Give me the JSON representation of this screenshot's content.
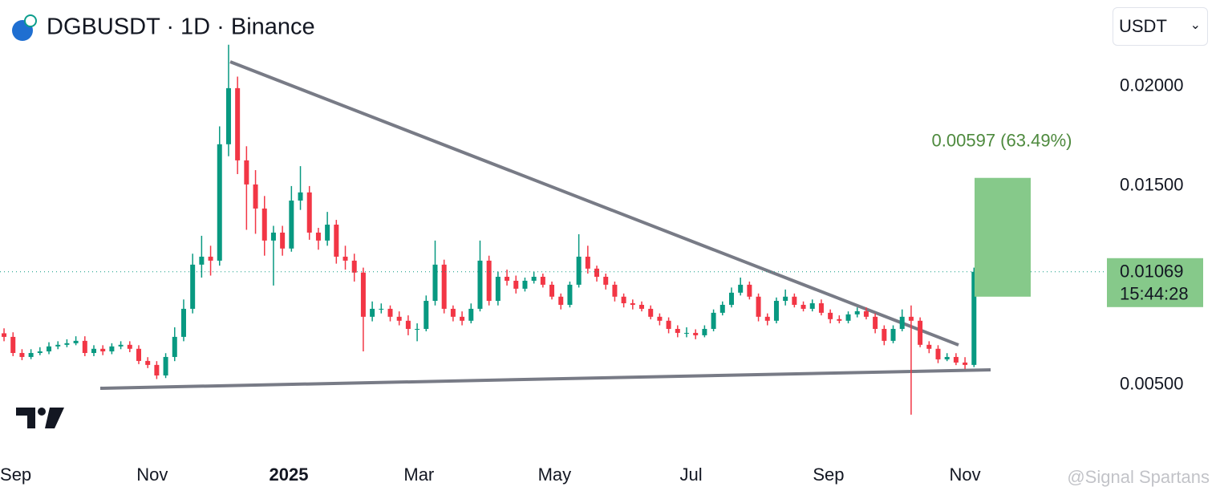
{
  "chart_data": {
    "type": "candlestick",
    "title": "DGBUSDT · 1D · Binance",
    "currency": "USDT",
    "up_color": "#089981",
    "down_color": "#f23645",
    "open": [
      0.0076,
      0.00742,
      0.00661,
      0.00641,
      0.00661,
      0.00669,
      0.00694,
      0.00702,
      0.0071,
      0.00722,
      0.00661,
      0.00682,
      0.00669,
      0.00694,
      0.00702,
      0.00682,
      0.00621,
      0.00601,
      0.00548,
      0.00641,
      0.00742,
      0.00883,
      0.01105,
      0.01145,
      0.01125,
      0.0171,
      0.01992,
      0.01629,
      0.01508,
      0.01387,
      0.01226,
      0.01266,
      0.01186,
      0.01427,
      0.01468,
      0.01266,
      0.01226,
      0.01306,
      0.01145,
      0.01125,
      0.01065,
      0.00843,
      0.00883,
      0.00883,
      0.00843,
      0.00823,
      0.00782,
      0.00782,
      0.00923,
      0.01105,
      0.00883,
      0.00843,
      0.00823,
      0.00883,
      0.01125,
      0.00923,
      0.01044,
      0.01024,
      0.00984,
      0.01024,
      0.01044,
      0.01004,
      0.00944,
      0.00903,
      0.01004,
      0.01145,
      0.01085,
      0.01044,
      0.01004,
      0.00944,
      0.00911,
      0.00903,
      0.00883,
      0.00843,
      0.00823,
      0.00782,
      0.00762,
      0.00762,
      0.0075,
      0.00782,
      0.00863,
      0.00903,
      0.00964,
      0.01004,
      0.00944,
      0.00843,
      0.00823,
      0.00923,
      0.00944,
      0.00903,
      0.00883,
      0.00911,
      0.00863,
      0.00831,
      0.00823,
      0.00855,
      0.00871,
      0.00843,
      0.00782,
      0.00722,
      0.00782,
      0.00843,
      0.00823,
      0.00702,
      0.00682,
      0.00629,
      0.00641,
      0.00613,
      0.00601
    ],
    "high": [
      0.00785,
      0.00765,
      0.0068,
      0.0068,
      0.0069,
      0.00715,
      0.0072,
      0.0073,
      0.00745,
      0.00745,
      0.007,
      0.007,
      0.0071,
      0.0072,
      0.0072,
      0.007,
      0.0064,
      0.0062,
      0.0066,
      0.0079,
      0.0093,
      0.0116,
      0.0125,
      0.012,
      0.018,
      0.0221,
      0.0205,
      0.017,
      0.0158,
      0.0145,
      0.013,
      0.013,
      0.015,
      0.016,
      0.015,
      0.0129,
      0.0137,
      0.0133,
      0.012,
      0.0116,
      0.0109,
      0.0092,
      0.0091,
      0.009,
      0.0087,
      0.0085,
      0.0081,
      0.0095,
      0.01226,
      0.0113,
      0.009,
      0.0087,
      0.0091,
      0.01226,
      0.0115,
      0.0107,
      0.0108,
      0.0105,
      0.0104,
      0.0107,
      0.0106,
      0.0102,
      0.0096,
      0.0102,
      0.01258,
      0.012,
      0.011,
      0.0106,
      0.0102,
      0.0096,
      0.0093,
      0.0092,
      0.009,
      0.0086,
      0.0084,
      0.008,
      0.0079,
      0.0078,
      0.008,
      0.0088,
      0.0092,
      0.0099,
      0.0104,
      0.0102,
      0.0096,
      0.0086,
      0.0094,
      0.0098,
      0.0096,
      0.0092,
      0.0093,
      0.0093,
      0.0088,
      0.0085,
      0.0087,
      0.0089,
      0.0089,
      0.0086,
      0.008,
      0.008,
      0.0088,
      0.009,
      0.0084,
      0.0072,
      0.007,
      0.0066,
      0.0066,
      0.0064,
      0.0109
    ],
    "low": [
      0.0072,
      0.00645,
      0.00625,
      0.0063,
      0.0065,
      0.00655,
      0.0068,
      0.0069,
      0.007,
      0.00645,
      0.00645,
      0.0065,
      0.00655,
      0.0068,
      0.00665,
      0.00605,
      0.00585,
      0.0053,
      0.00535,
      0.0062,
      0.0072,
      0.0086,
      0.0104,
      0.0105,
      0.011,
      0.0165,
      0.0156,
      0.0128,
      0.0126,
      0.0115,
      0.01,
      0.0115,
      0.0117,
      0.0138,
      0.0123,
      0.0118,
      0.012,
      0.0111,
      0.0108,
      0.0102,
      0.00669,
      0.0082,
      0.0086,
      0.0082,
      0.008,
      0.0075,
      0.0072,
      0.0077,
      0.009,
      0.0086,
      0.0082,
      0.008,
      0.0081,
      0.0087,
      0.009,
      0.009,
      0.01,
      0.0096,
      0.0097,
      0.0101,
      0.0099,
      0.0093,
      0.0088,
      0.0089,
      0.0099,
      0.0106,
      0.0102,
      0.0098,
      0.0092,
      0.0089,
      0.0088,
      0.0087,
      0.0083,
      0.008,
      0.0076,
      0.0074,
      0.0074,
      0.0073,
      0.0074,
      0.0077,
      0.0085,
      0.0089,
      0.0095,
      0.0093,
      0.0082,
      0.008,
      0.0081,
      0.009,
      0.0089,
      0.0087,
      0.0087,
      0.0085,
      0.0081,
      0.0081,
      0.0081,
      0.0084,
      0.0083,
      0.0076,
      0.007,
      0.0071,
      0.0077,
      0.00351,
      0.0069,
      0.0066,
      0.0061,
      0.0062,
      0.006,
      0.0058,
      0.0059
    ],
    "close": [
      0.00742,
      0.00661,
      0.00641,
      0.00661,
      0.00669,
      0.00694,
      0.00702,
      0.0071,
      0.00722,
      0.00661,
      0.00682,
      0.00669,
      0.00694,
      0.00702,
      0.00682,
      0.00621,
      0.00601,
      0.00548,
      0.00641,
      0.00742,
      0.00883,
      0.01105,
      0.01145,
      0.01125,
      0.0171,
      0.01992,
      0.01629,
      0.01508,
      0.01387,
      0.01226,
      0.01266,
      0.01186,
      0.01427,
      0.01468,
      0.01266,
      0.01226,
      0.01306,
      0.01145,
      0.01125,
      0.01065,
      0.00843,
      0.00883,
      0.00883,
      0.00843,
      0.00823,
      0.00782,
      0.00782,
      0.00923,
      0.01105,
      0.00883,
      0.00843,
      0.00823,
      0.00883,
      0.01125,
      0.00923,
      0.01044,
      0.01024,
      0.00984,
      0.01024,
      0.01044,
      0.01004,
      0.00944,
      0.00903,
      0.01004,
      0.01145,
      0.01085,
      0.01044,
      0.01004,
      0.00944,
      0.00911,
      0.00903,
      0.00883,
      0.00843,
      0.00823,
      0.00782,
      0.00762,
      0.00762,
      0.0075,
      0.00782,
      0.00863,
      0.00903,
      0.00964,
      0.01004,
      0.00944,
      0.00843,
      0.00823,
      0.00923,
      0.00944,
      0.00903,
      0.00883,
      0.00911,
      0.00863,
      0.00831,
      0.00823,
      0.00855,
      0.00871,
      0.00843,
      0.00782,
      0.00722,
      0.00782,
      0.00843,
      0.00823,
      0.00702,
      0.00682,
      0.00629,
      0.00641,
      0.00613,
      0.00601,
      0.01069
    ],
    "xlim": [
      -0.45,
      122.8
    ],
    "ylim": [
      0.00157,
      0.02435
    ],
    "xticks": [
      {
        "value": 1.3,
        "label": "Sep"
      },
      {
        "value": 16.5,
        "label": "Nov"
      },
      {
        "value": 31.7,
        "label": "2025"
      },
      {
        "value": 46.2,
        "label": "Mar"
      },
      {
        "value": 61.3,
        "label": "May"
      },
      {
        "value": 76.5,
        "label": "Jul"
      },
      {
        "value": 91.8,
        "label": "Sep"
      },
      {
        "value": 107,
        "label": "Nov"
      }
    ],
    "yticks": [
      {
        "value": 0.005,
        "label": "0.00500"
      },
      {
        "value": 0.015,
        "label": "0.01500"
      },
      {
        "value": 0.02,
        "label": "0.02000"
      }
    ],
    "last_price": 0.01069,
    "countdown": "15:44:28",
    "measure": {
      "label": "0.00597 (63.49%)",
      "from": 0.00944,
      "to": 0.01541,
      "color": "#86c98a"
    },
    "watermark": "@Signal Spartans"
  }
}
